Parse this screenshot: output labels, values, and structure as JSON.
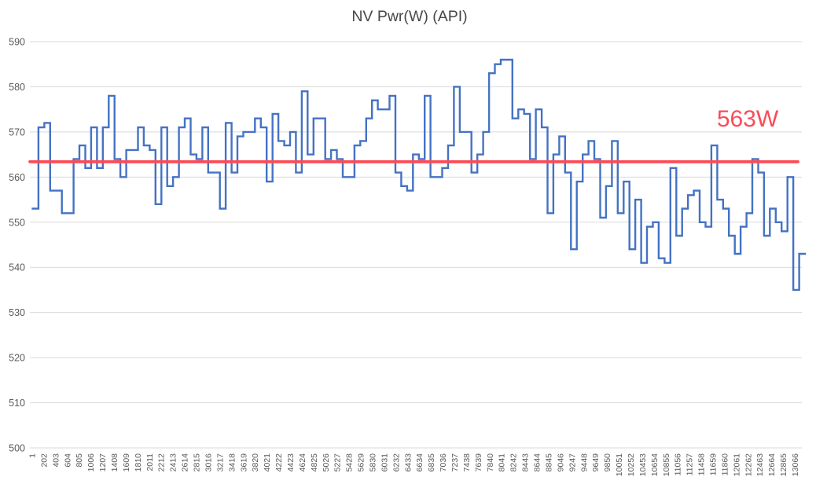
{
  "chart_data": {
    "type": "line",
    "subtype": "step",
    "title": "NV Pwr(W) (API)",
    "xlabel": "",
    "ylabel": "",
    "ylim": [
      500,
      590
    ],
    "yticks": [
      500,
      510,
      520,
      530,
      540,
      550,
      560,
      570,
      580,
      590
    ],
    "grid": true,
    "legend_position": "none",
    "x_tick_labels": [
      "1",
      "202",
      "403",
      "604",
      "805",
      "1006",
      "1207",
      "1408",
      "1609",
      "1810",
      "2011",
      "2212",
      "2413",
      "2614",
      "2815",
      "3016",
      "3217",
      "3418",
      "3619",
      "3820",
      "4021",
      "4222",
      "4423",
      "4624",
      "4825",
      "5026",
      "5227",
      "5428",
      "5629",
      "5830",
      "6031",
      "6232",
      "6433",
      "6634",
      "6835",
      "7036",
      "7237",
      "7438",
      "7639",
      "7840",
      "8041",
      "8242",
      "8443",
      "8644",
      "8845",
      "9046",
      "9247",
      "9448",
      "9649",
      "9850",
      "10051",
      "10252",
      "10453",
      "10654",
      "10855",
      "11056",
      "11257",
      "11458",
      "11659",
      "11860",
      "12061",
      "12262",
      "12463",
      "12664",
      "12865",
      "13066"
    ],
    "values": [
      553,
      571,
      572,
      557,
      557,
      552,
      552,
      564,
      567,
      562,
      571,
      562,
      571,
      578,
      564,
      560,
      566,
      566,
      571,
      567,
      566,
      554,
      571,
      558,
      560,
      571,
      573,
      565,
      564,
      571,
      561,
      561,
      553,
      572,
      561,
      569,
      570,
      570,
      573,
      571,
      559,
      574,
      568,
      567,
      570,
      561,
      579,
      565,
      573,
      573,
      564,
      566,
      564,
      560,
      560,
      567,
      568,
      573,
      577,
      575,
      575,
      578,
      561,
      558,
      557,
      565,
      564,
      578,
      560,
      560,
      562,
      567,
      580,
      570,
      570,
      561,
      565,
      570,
      583,
      585,
      586,
      586,
      573,
      575,
      574,
      564,
      575,
      571,
      552,
      565,
      569,
      561,
      544,
      559,
      565,
      568,
      564,
      551,
      558,
      568,
      552,
      559,
      544,
      555,
      541,
      549,
      550,
      542,
      541,
      562,
      547,
      553,
      556,
      557,
      550,
      549,
      567,
      555,
      553,
      547,
      543,
      549,
      552,
      564,
      561,
      547,
      553,
      550,
      548,
      560,
      535,
      543
    ],
    "ref_line": {
      "value": 563.4,
      "label": "563W"
    },
    "colors": {
      "series": "#4472C4",
      "ref_line": "#FB4B57",
      "annotation_text": "#FB4B57",
      "gridline": "#D9D9D9",
      "axis_text": "#595959",
      "title_text": "#474747"
    }
  }
}
